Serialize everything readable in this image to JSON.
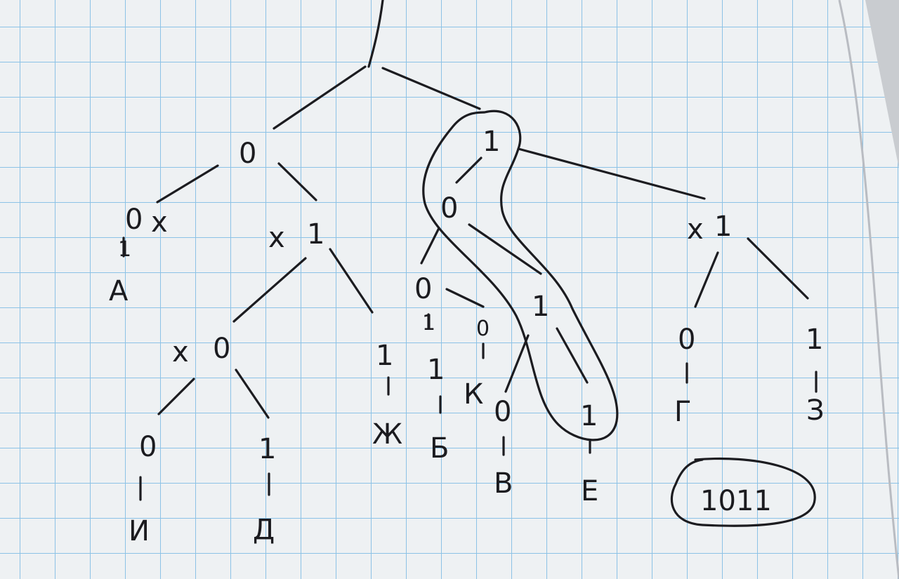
{
  "colors": {
    "paper": "#eef1f3",
    "grid": "#8cc2e6",
    "ink": "#1b1b1f",
    "shadow": "#c9ccd0"
  },
  "tree": {
    "root_left_bit": "0",
    "root_right_bit": "1",
    "markers": [
      "x",
      "x",
      "x",
      "x"
    ],
    "left": {
      "bit_0": "0",
      "bit_1": "1",
      "leaf_0_digit": "1",
      "leaf_0_letter": "А",
      "sub": {
        "bit_0": "0",
        "leaf_00": {
          "bit": "0",
          "letter": "И"
        },
        "leaf_01": {
          "bit": "1",
          "letter": "Д"
        },
        "leaf_1": {
          "bit": "1",
          "letter": "Ж"
        }
      }
    },
    "middle": {
      "bit_0": "0",
      "bit_00": "0",
      "b_digit_top": "1",
      "b_digit_mid": "1",
      "b_letter": "Б",
      "k_digit_top": "0",
      "k_letter": "К",
      "bit_01": "1",
      "v_bit": "0",
      "v_letter": "В",
      "e_bit": "1",
      "e_letter": "Е"
    },
    "right": {
      "bit_1": "1",
      "g_bit": "0",
      "g_letter": "Г",
      "z_bit": "1",
      "z_letter": "З"
    },
    "answer": "1011"
  }
}
